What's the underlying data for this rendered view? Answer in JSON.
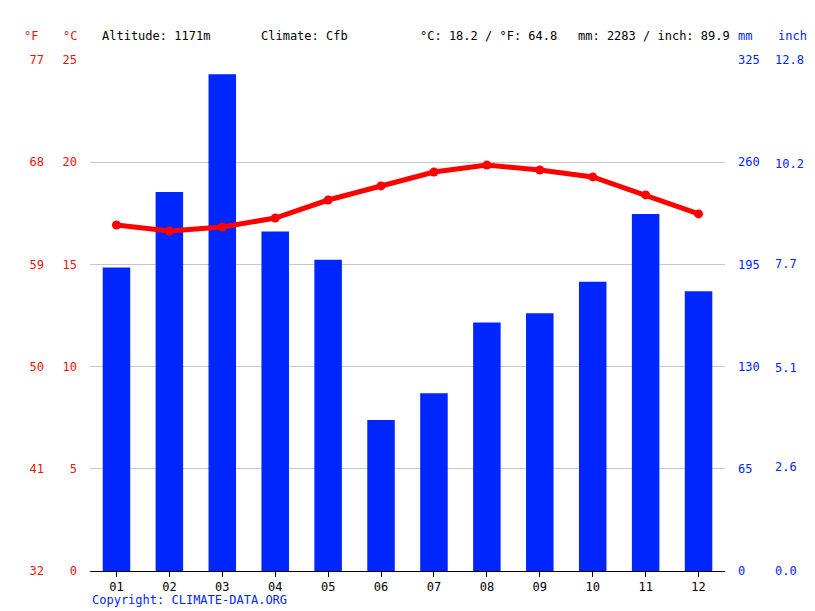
{
  "chart_data": {
    "type": "bar",
    "categories": [
      "01",
      "02",
      "03",
      "04",
      "05",
      "06",
      "07",
      "08",
      "09",
      "10",
      "11",
      "12"
    ],
    "series": [
      {
        "type": "bar",
        "color": "#0026ff",
        "axis": "y2",
        "values": [
          193,
          241,
          316,
          216,
          198,
          96,
          113,
          158,
          164,
          184,
          227,
          178
        ]
      },
      {
        "type": "line",
        "color": "#ff0000",
        "marker": "circle",
        "line_style": "solid",
        "values": [
          16.93,
          16.63,
          16.83,
          17.27,
          18.15,
          18.84,
          19.52,
          19.86,
          19.62,
          19.28,
          18.4,
          17.47
        ]
      }
    ],
    "ylabel": "°C",
    "ylim": [
      0,
      25
    ],
    "yticks": [
      0,
      5,
      10,
      15,
      20,
      25
    ],
    "y2label": "mm",
    "y2lim": [
      0,
      325
    ],
    "y2ticks": [
      0,
      65,
      130,
      195,
      260,
      325
    ],
    "y3label": "°F",
    "y3lim": [
      32,
      77
    ],
    "y3ticks": [
      32,
      41,
      50,
      59,
      68,
      77
    ],
    "y4label": "inch",
    "y4lim": [
      0,
      12.8
    ],
    "y4ticks": [
      {
        "value": 0,
        "label": "0.0"
      },
      2.6,
      5.1,
      7.7,
      10.2,
      12.8
    ],
    "grid": true,
    "annotations": [
      "Altitude: 1171m",
      "Climate: Cfb",
      "°C: 18.2 / °F: 64.8",
      "mm: 2283 / inch: 89.9"
    ],
    "footer": "Copyright: CLIMATE-DATA.ORG"
  }
}
